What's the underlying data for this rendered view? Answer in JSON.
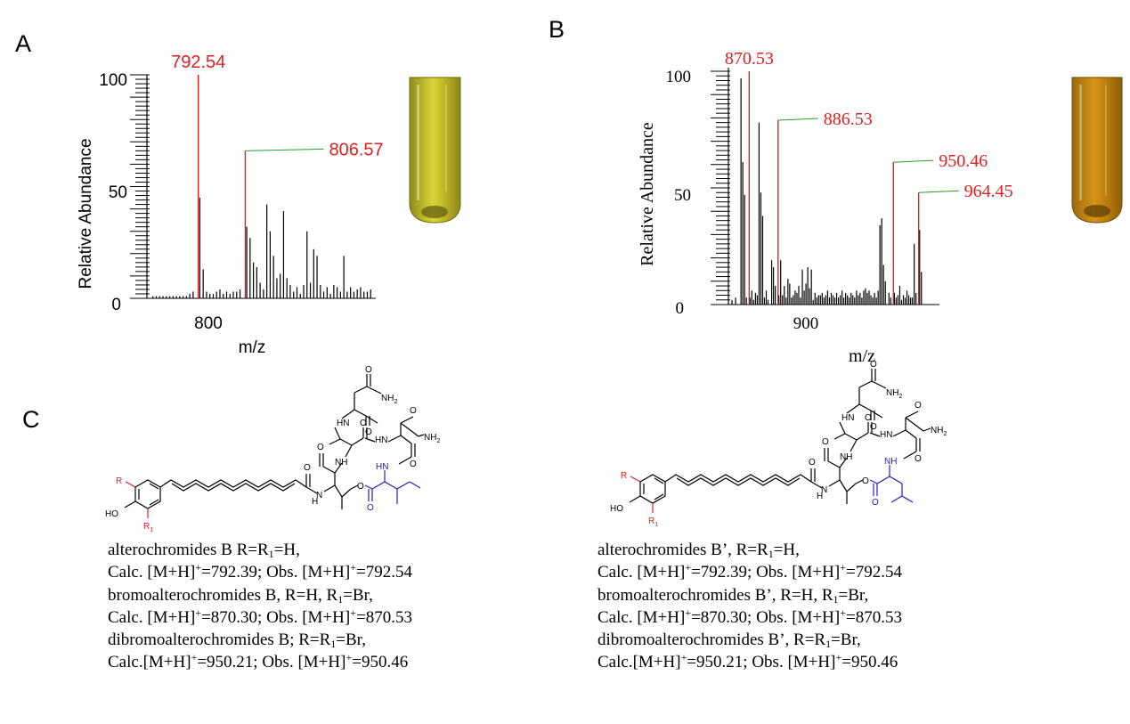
{
  "panels": {
    "a": {
      "label": "A",
      "chart_data": {
        "type": "bar",
        "title": "",
        "xlabel": "m/z",
        "ylabel": "Relative Abundance",
        "xlim": [
          778,
          845
        ],
        "ylim": [
          0,
          100
        ],
        "xticks": [
          {
            "value": 800,
            "label": "800"
          }
        ],
        "yticks": [
          {
            "value": 0,
            "label": "0"
          },
          {
            "value": 50,
            "label": "50"
          },
          {
            "value": 100,
            "label": "100"
          }
        ],
        "peaks": {
          "x": [
            779,
            780,
            781,
            782,
            783,
            784,
            785,
            786,
            787,
            788,
            789,
            790,
            791,
            793,
            794,
            795,
            796,
            797,
            798,
            799,
            800,
            801,
            802,
            803,
            804,
            805,
            807,
            808,
            809,
            810,
            811,
            812,
            813,
            814,
            815,
            816,
            817,
            818,
            819,
            820,
            821,
            822,
            823,
            824,
            825,
            826,
            827,
            828,
            829,
            830,
            831,
            832,
            833,
            834,
            835,
            836,
            837,
            838,
            839,
            840,
            841,
            842,
            843,
            844
          ],
          "y": [
            1,
            1,
            1,
            1,
            1,
            1,
            1,
            1,
            1,
            1,
            1,
            2,
            3,
            45,
            13,
            3,
            2,
            2,
            3,
            4,
            2,
            3,
            2,
            3,
            3,
            4,
            32,
            27,
            16,
            14,
            7,
            4,
            42,
            30,
            19,
            9,
            11,
            39,
            9,
            6,
            3,
            5,
            2,
            6,
            30,
            7,
            22,
            19,
            6,
            3,
            5,
            2,
            6,
            5,
            3,
            19,
            3,
            5,
            3,
            4,
            5,
            3,
            3,
            4
          ]
        },
        "annotations": [
          {
            "label": "792.54",
            "x": 792.54,
            "y": 100,
            "color": "#e02020"
          },
          {
            "label": "806.57",
            "x": 806.57,
            "y": 66,
            "color": "#e02020"
          }
        ]
      },
      "tube_color": "#c9c22a"
    },
    "b": {
      "label": "B",
      "chart_data": {
        "type": "bar",
        "title": "",
        "xlabel": "m/z",
        "ylabel": "Relative Abundance",
        "xlim": [
          860,
          975
        ],
        "ylim": [
          0,
          100
        ],
        "xticks": [
          {
            "value": 900,
            "label": "900"
          }
        ],
        "yticks": [
          {
            "value": 0,
            "label": "0"
          },
          {
            "value": 50,
            "label": "50"
          },
          {
            "value": 100,
            "label": "100"
          }
        ],
        "peaks": {
          "x": [
            861,
            863,
            866,
            867,
            868,
            869,
            871,
            872,
            873,
            874,
            875,
            876,
            877,
            878,
            879,
            880,
            881,
            883,
            884,
            885,
            887,
            888,
            889,
            890,
            891,
            892,
            893,
            894,
            895,
            896,
            897,
            898,
            899,
            900,
            901,
            902,
            903,
            904,
            905,
            906,
            907,
            908,
            909,
            910,
            911,
            912,
            913,
            914,
            915,
            916,
            917,
            918,
            919,
            920,
            921,
            922,
            923,
            924,
            925,
            926,
            927,
            928,
            929,
            930,
            931,
            932,
            933,
            934,
            935,
            936,
            937,
            938,
            939,
            940,
            941,
            942,
            943,
            944,
            945,
            946,
            948,
            949,
            951,
            952,
            953,
            954,
            955,
            956,
            957,
            958,
            959,
            960,
            961,
            962,
            963,
            965,
            966
          ],
          "y": [
            2,
            3,
            97,
            61,
            47,
            3,
            3,
            6,
            2,
            5,
            4,
            78,
            48,
            38,
            3,
            6,
            2,
            19,
            16,
            8,
            4,
            19,
            4,
            8,
            3,
            11,
            9,
            3,
            4,
            6,
            5,
            8,
            3,
            15,
            6,
            9,
            16,
            7,
            15,
            2,
            5,
            3,
            4,
            4,
            5,
            3,
            4,
            6,
            3,
            5,
            4,
            3,
            5,
            3,
            4,
            6,
            3,
            5,
            4,
            3,
            5,
            4,
            3,
            6,
            4,
            5,
            3,
            6,
            7,
            5,
            6,
            4,
            3,
            5,
            3,
            6,
            34,
            37,
            17,
            10,
            5,
            3,
            5,
            3,
            4,
            8,
            2,
            4,
            3,
            6,
            4,
            3,
            3,
            26,
            5,
            32,
            14
          ]
        },
        "annotations": [
          {
            "label": "870.53",
            "x": 870.53,
            "y": 100,
            "color": "#e02020"
          },
          {
            "label": "886.53",
            "x": 886.53,
            "y": 79,
            "color": "#e02020"
          },
          {
            "label": "950.46",
            "x": 950.46,
            "y": 61,
            "color": "#e02020"
          },
          {
            "label": "964.45",
            "x": 964.45,
            "y": 48,
            "color": "#e02020"
          }
        ]
      },
      "tube_color": "#c4860f"
    },
    "c": {
      "label": "C",
      "left": {
        "lines": [
          [
            "alterochromides B R=R",
            "1",
            "=H,"
          ],
          [
            "Calc. [M+H]",
            "+",
            "=792.39;  Obs. [M+H]",
            "+",
            "=792.54"
          ],
          [
            "bromoalterochromides B, R=H, R",
            "1",
            "=Br,"
          ],
          [
            "Calc. [M+H]",
            "+",
            "=870.30;  Obs. [M+H]",
            "+",
            "=870.53"
          ],
          [
            "dibromoalterochromides B; R=R",
            "1",
            "=Br,"
          ],
          [
            "Calc.[M+H]",
            "+",
            "=950.21;  Obs. [M+H]",
            "+",
            "=950.46"
          ]
        ]
      },
      "right": {
        "lines": [
          [
            "alterochromides B’, R=R",
            "1",
            "=H,"
          ],
          [
            "Calc. [M+H]",
            "+",
            "=792.39;  Obs. [M+H]",
            "+",
            "=792.54"
          ],
          [
            "bromoalterochromides B’, R=H, R",
            "1",
            "=Br,"
          ],
          [
            "Calc. [M+H]",
            "+",
            "=870.30;  Obs. [M+H]",
            "+",
            "=870.53"
          ],
          [
            "dibromoalterochromides B’, R=R",
            "1",
            "=Br,"
          ],
          [
            "Calc.[M+H]",
            "+",
            "=950.21;  Obs. [M+H]",
            "+",
            "=950.46"
          ]
        ]
      },
      "structure_labels": {
        "nh2": "NH",
        "nh2_sub": "2",
        "hn": "HN",
        "nh": "NH",
        "h": "H",
        "n": "N",
        "o": "O",
        "ho": "HO",
        "r": "R",
        "r1": "R",
        "r1_sub": "1"
      }
    }
  },
  "colors": {
    "highlight": "#e02020",
    "leader": "#22a022",
    "ester": "#2020c0"
  }
}
